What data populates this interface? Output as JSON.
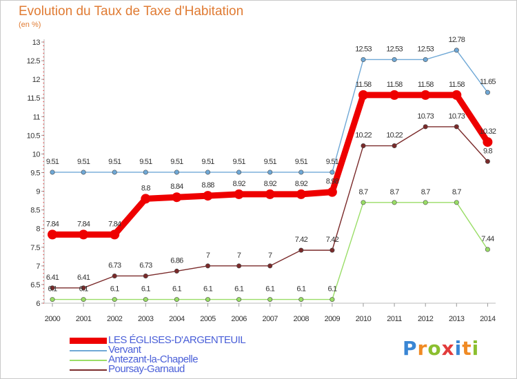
{
  "title": "Evolution du Taux de Taxe d'Habitation",
  "unit": "(en %)",
  "logo": {
    "text": "Proxiti",
    "letters": [
      {
        "ch": "P",
        "color": "#3a86d4"
      },
      {
        "ch": "r",
        "color": "#f08a24"
      },
      {
        "ch": "o",
        "color": "#8bbf2f"
      },
      {
        "ch": "x",
        "color": "#e23b3b"
      },
      {
        "ch": "i",
        "color": "#3a86d4"
      },
      {
        "ch": "t",
        "color": "#f08a24"
      },
      {
        "ch": "i",
        "color": "#8bbf2f"
      }
    ]
  },
  "chart_data": {
    "type": "line",
    "title": "Evolution du Taux de Taxe d'Habitation",
    "ylabel": "(en %)",
    "xlabel": "",
    "x": [
      "2000",
      "2001",
      "2002",
      "2003",
      "2004",
      "2005",
      "2006",
      "2007",
      "2008",
      "2009",
      "2010",
      "2011",
      "2012",
      "2013",
      "2014"
    ],
    "ylim": [
      6,
      13
    ],
    "yticks": [
      "6",
      "6.5",
      "7",
      "7.5",
      "8",
      "8.5",
      "9",
      "9.5",
      "10",
      "10.5",
      "11",
      "11.5",
      "12",
      "12.5",
      "13"
    ],
    "grid": false,
    "legend_position": "bottom-left",
    "series": [
      {
        "name": "LES ÉGLISES-D'ARGENTEUIL",
        "color": "#ee0000",
        "values": [
          7.84,
          7.84,
          7.84,
          8.8,
          8.84,
          8.88,
          8.92,
          8.92,
          8.92,
          8.98,
          11.58,
          11.58,
          11.58,
          11.58,
          10.32
        ],
        "labels": [
          "7.84",
          "7.84",
          "7.84",
          "8.8",
          "8.84",
          "8.88",
          "8.92",
          "8.92",
          "8.92",
          "8.98",
          "11.58",
          "11.58",
          "11.58",
          "11.58",
          "10.32"
        ]
      },
      {
        "name": "Vervant",
        "color": "#6fa8d6",
        "values": [
          9.51,
          9.51,
          9.51,
          9.51,
          9.51,
          9.51,
          9.51,
          9.51,
          9.51,
          9.51,
          12.53,
          12.53,
          12.53,
          12.78,
          11.65
        ],
        "labels": [
          "9.51",
          "9.51",
          "9.51",
          "9.51",
          "9.51",
          "9.51",
          "9.51",
          "9.51",
          "9.51",
          "9.51",
          "12.53",
          "12.53",
          "12.53",
          "12.78",
          "11.65"
        ]
      },
      {
        "name": "Antezant-la-Chapelle",
        "color": "#99dd66",
        "values": [
          6.1,
          6.1,
          6.1,
          6.1,
          6.1,
          6.1,
          6.1,
          6.1,
          6.1,
          6.1,
          8.7,
          8.7,
          8.7,
          8.7,
          7.44
        ],
        "labels": [
          "6.1",
          "6.1",
          "6.1",
          "6.1",
          "6.1",
          "6.1",
          "6.1",
          "6.1",
          "6.1",
          "6.1",
          "8.7",
          "8.7",
          "8.7",
          "8.7",
          "7.44"
        ]
      },
      {
        "name": "Poursay-Garnaud",
        "color": "#7a2a2a",
        "values": [
          6.41,
          6.41,
          6.73,
          6.73,
          6.86,
          7,
          7,
          7,
          7.42,
          7.42,
          10.22,
          10.22,
          10.73,
          10.73,
          9.8
        ],
        "labels": [
          "6.41",
          "6.41",
          "6.73",
          "6.73",
          "6.86",
          "7",
          "7",
          "7",
          "7.42",
          "7.42",
          "10.22",
          "10.22",
          "10.73",
          "10.73",
          "9.8"
        ]
      }
    ]
  }
}
